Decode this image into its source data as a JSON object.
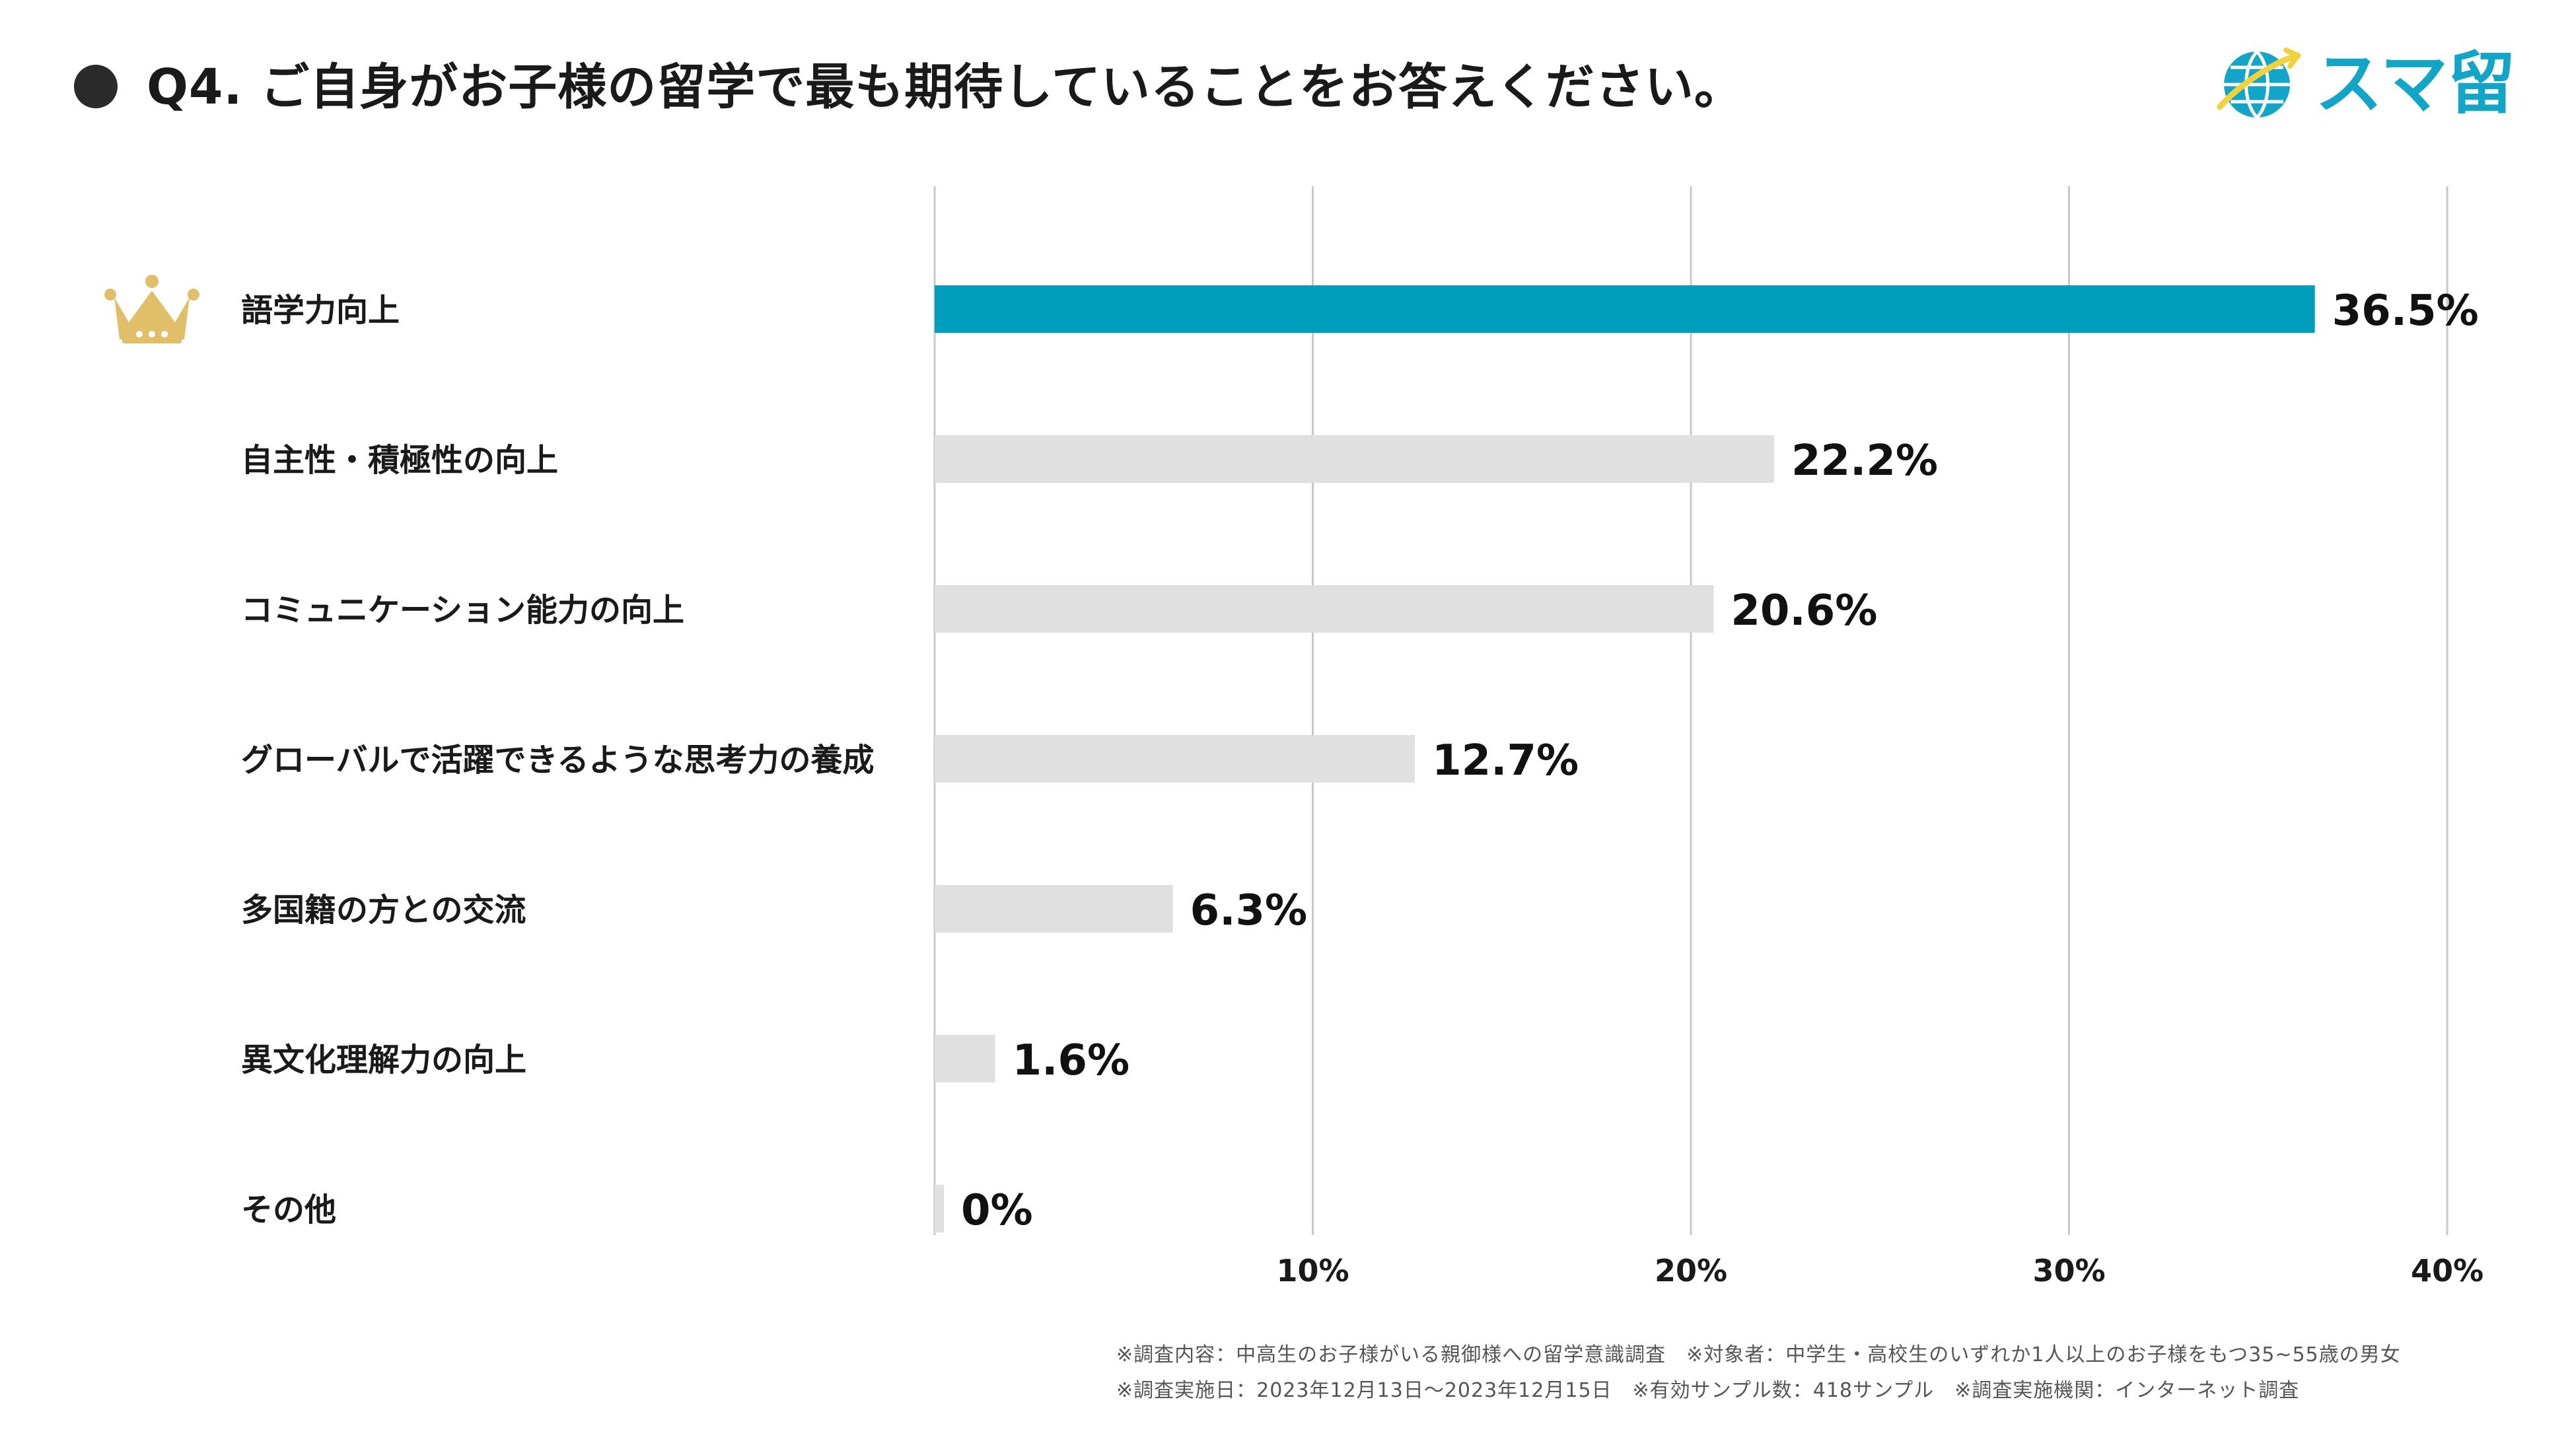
{
  "title": "Q4. ご自身がお子様の留学で最も期待していることをお答えください。",
  "logo": {
    "text": "スマ留"
  },
  "colors": {
    "highlight": "#009ebd",
    "bar_default": "#e0e0e0",
    "grid": "#c8c8c8",
    "crown": "#e1bf6a",
    "logo_blue": "#12a5c7",
    "logo_yellow": "#f2d23c"
  },
  "chart_data": {
    "type": "bar",
    "orientation": "horizontal",
    "title": "Q4. ご自身がお子様の留学で最も期待していることをお答えください。",
    "categories": [
      "語学力向上",
      "自主性・積極性の向上",
      "コミュニケーション能力の向上",
      "グローバルで活躍できるような思考力の養成",
      "多国籍の方との交流",
      "異文化理解力の向上",
      "その他"
    ],
    "values": [
      36.5,
      22.2,
      20.6,
      12.7,
      6.3,
      1.6,
      0
    ],
    "value_labels": [
      "36.5%",
      "22.2%",
      "20.6%",
      "12.7%",
      "6.3%",
      "1.6%",
      "0%"
    ],
    "highlight_index": 0,
    "xlim": [
      0,
      40
    ],
    "xticks": [
      10,
      20,
      30,
      40
    ],
    "xtick_labels": [
      "10%",
      "20%",
      "30%",
      "40%"
    ],
    "grid": true,
    "xlabel": "",
    "ylabel": ""
  },
  "footnotes": [
    "※調査内容：中高生のお子様がいる親御様への留学意識調査　※対象者：中学生・高校生のいずれか1人以上のお子様をもつ35~55歳の男女",
    "※調査実施日：2023年12月13日～2023年12月15日　※有効サンプル数：418サンプル　※調査実施機関：インターネット調査"
  ]
}
